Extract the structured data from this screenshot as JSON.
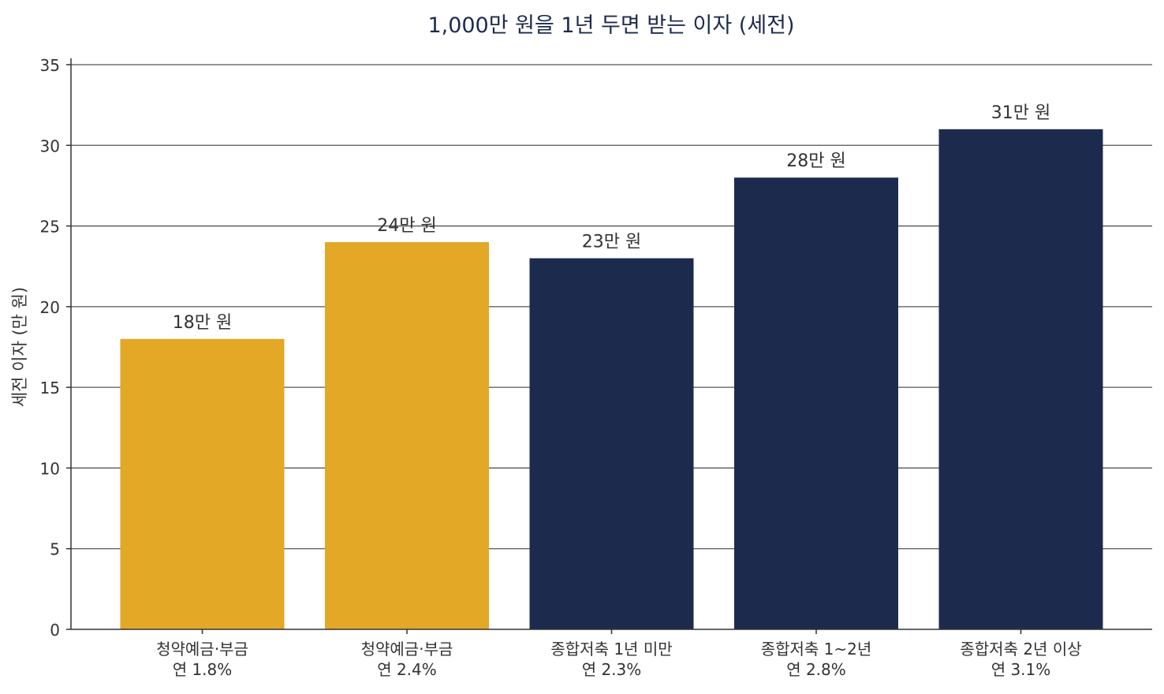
{
  "chart_data": {
    "type": "bar",
    "title": "1,000만 원을 1년 두면 받는 이자 (세전)",
    "xlabel": "",
    "ylabel": "세전 이자 (만 원)",
    "ylim": [
      0,
      35
    ],
    "yticks": [
      0,
      5,
      10,
      15,
      20,
      25,
      30,
      35
    ],
    "grid": true,
    "categories": [
      [
        "청약예금·부금",
        "연 1.8%"
      ],
      [
        "청약예금·부금",
        "연 2.4%"
      ],
      [
        "종합저축 1년 미만",
        "연 2.3%"
      ],
      [
        "종합저축 1~2년",
        "연 2.8%"
      ],
      [
        "종합저축 2년 이상",
        "연 3.1%"
      ]
    ],
    "values": [
      18,
      24,
      23,
      28,
      31
    ],
    "data_labels": [
      "18만 원",
      "24만 원",
      "23만 원",
      "28만 원",
      "31만 원"
    ],
    "bar_colors": [
      "#E2A826",
      "#E2A826",
      "#1C2B4D",
      "#1C2B4D",
      "#1C2B4D"
    ],
    "title_color": "#1C2B4D",
    "text_color": "#333333",
    "axis_color": "#333333",
    "grid_color": "#555555"
  }
}
